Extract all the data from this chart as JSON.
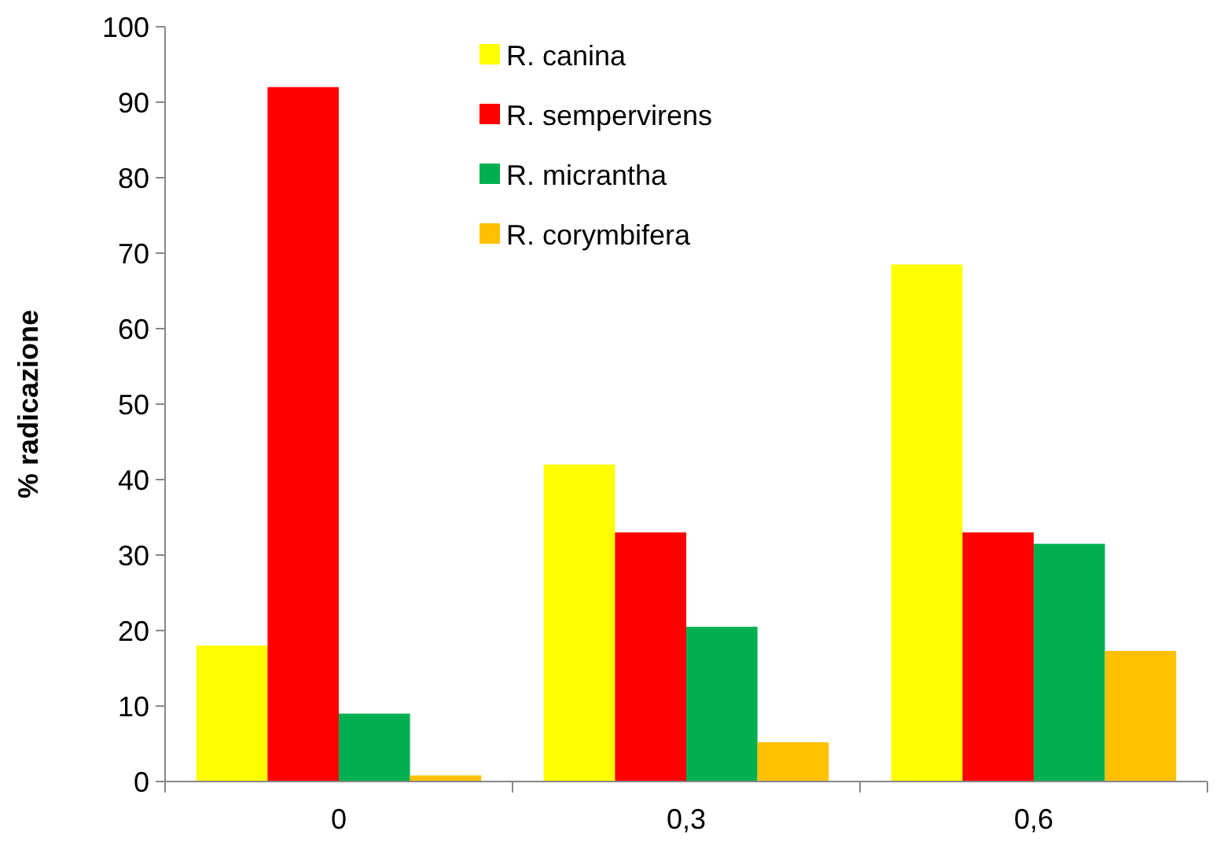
{
  "chart_data": {
    "type": "bar",
    "ylabel": "% radicazione",
    "categories": [
      "0",
      "0,3",
      "0,6"
    ],
    "series": [
      {
        "name": "R. canina",
        "color": "#ffff00",
        "values": [
          18,
          42,
          68.5
        ]
      },
      {
        "name": "R. sempervirens",
        "color": "#ff0000",
        "values": [
          92,
          33,
          33
        ]
      },
      {
        "name": "R. micrantha",
        "color": "#00b050",
        "values": [
          9,
          20.5,
          31.5
        ]
      },
      {
        "name": "R. corymbifera",
        "color": "#ffc000",
        "values": [
          0.8,
          5.2,
          17.3
        ]
      }
    ],
    "ylim": [
      0,
      100
    ],
    "yticks": [
      0,
      10,
      20,
      30,
      40,
      50,
      60,
      70,
      80,
      90,
      100
    ],
    "legend": "top",
    "grid": false
  }
}
